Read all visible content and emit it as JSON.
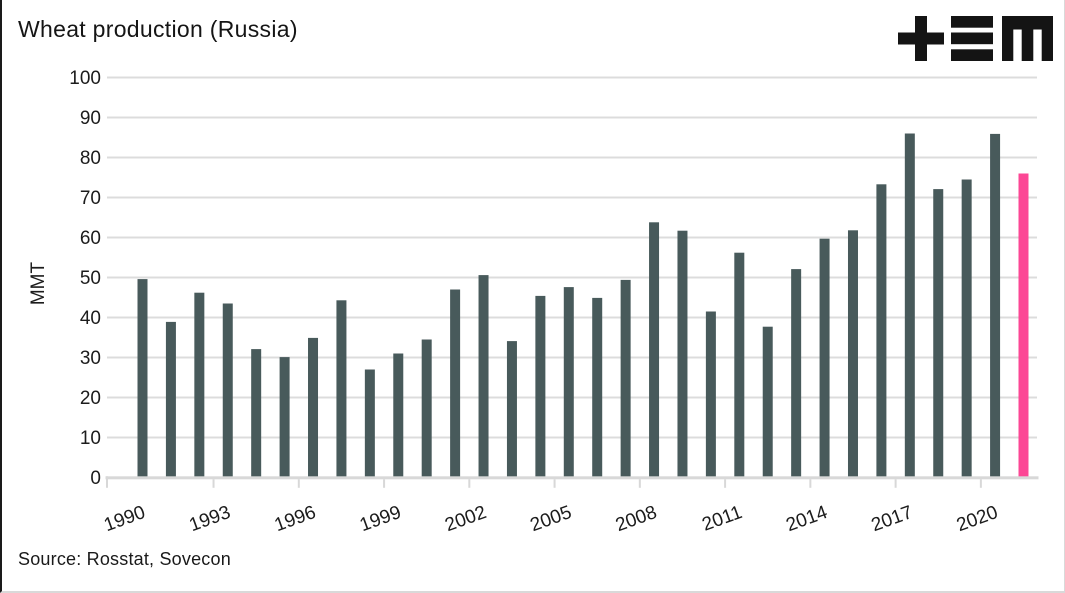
{
  "header": {
    "title": "Wheat production (Russia)"
  },
  "branding": {
    "logo_icon": "plus-three-bars-m-monogram",
    "logo_color": "#141414"
  },
  "footer": {
    "source": "Source: Rosstat, Sovecon"
  },
  "chart_data": {
    "type": "bar",
    "title": "Wheat production (Russia)",
    "xlabel": "",
    "ylabel": "MMT",
    "ylim": [
      0,
      100
    ],
    "ytick_step": 10,
    "grid": true,
    "legend": "none",
    "categories": [
      1990,
      1991,
      1992,
      1993,
      1994,
      1995,
      1996,
      1997,
      1998,
      1999,
      2000,
      2001,
      2002,
      2003,
      2004,
      2005,
      2006,
      2007,
      2008,
      2009,
      2010,
      2011,
      2012,
      2013,
      2014,
      2015,
      2016,
      2017,
      2018,
      2019,
      2020,
      2021
    ],
    "values": [
      49.6,
      38.9,
      46.2,
      43.5,
      32.1,
      30.1,
      34.9,
      44.3,
      27.0,
      31.0,
      34.5,
      47.0,
      50.6,
      34.1,
      45.4,
      47.6,
      44.9,
      49.4,
      63.8,
      61.7,
      41.5,
      56.2,
      37.7,
      52.1,
      59.7,
      61.8,
      73.3,
      86.0,
      72.1,
      74.5,
      85.9,
      76.0
    ],
    "x_tick_labels": [
      "1990",
      "1993",
      "1996",
      "1999",
      "2002",
      "2005",
      "2008",
      "2011",
      "2014",
      "2017",
      "2020"
    ],
    "x_tick_every": 3,
    "highlight_index": 31,
    "bar_color": "#485a5b",
    "highlight_color": "#fc4795",
    "grid_color": "#dcdcdc",
    "axis_color": "#d8d8d8",
    "text_color": "#1c1c1c"
  }
}
